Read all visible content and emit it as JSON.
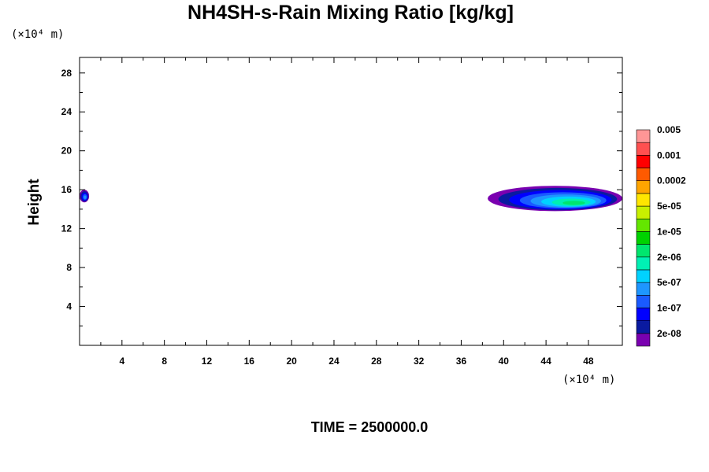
{
  "chart_data": {
    "type": "heatmap",
    "title": "NH4SH-s-Rain Mixing Ratio [kg/kg]",
    "ylabel": "Height",
    "x_unit": "(×10⁴ m)",
    "y_unit": "(×10⁴ m)",
    "footer": "TIME = 2500000.0",
    "xlim": [
      0,
      51.2
    ],
    "ylim": [
      0,
      29.6
    ],
    "x_ticks": [
      4,
      8,
      12,
      16,
      20,
      24,
      28,
      32,
      36,
      40,
      44,
      48
    ],
    "y_ticks": [
      4,
      8,
      12,
      16,
      20,
      24,
      28
    ],
    "x_tick_labels": [
      "4",
      "8",
      "12",
      "16",
      "20",
      "24",
      "28",
      "32",
      "36",
      "40",
      "44",
      "48"
    ],
    "y_tick_labels": [
      "4",
      "8",
      "12",
      "16",
      "20",
      "24",
      "28"
    ],
    "colorbar": {
      "colors": [
        "#7a00b0",
        "#0a1aa0",
        "#0000ff",
        "#1a5aff",
        "#1e96ff",
        "#00d2ff",
        "#00f0b4",
        "#00e66e",
        "#00d200",
        "#64e600",
        "#c8f000",
        "#ffe600",
        "#ffa500",
        "#ff5a00",
        "#ff0000",
        "#ff5050",
        "#ff9696"
      ],
      "labels": [
        "2e-08",
        "1e-07",
        "5e-07",
        "2e-06",
        "1e-05",
        "5e-05",
        "0.0002",
        "0.001",
        "0.005"
      ]
    },
    "regions": [
      {
        "name": "left-edge",
        "x": [
          0,
          0.9
        ],
        "y": [
          14.7,
          16.0
        ],
        "peak_level": 4
      },
      {
        "name": "right-band",
        "x": [
          38.5,
          51.2
        ],
        "y": [
          13.8,
          16.4
        ],
        "peak_level": 7
      }
    ]
  }
}
